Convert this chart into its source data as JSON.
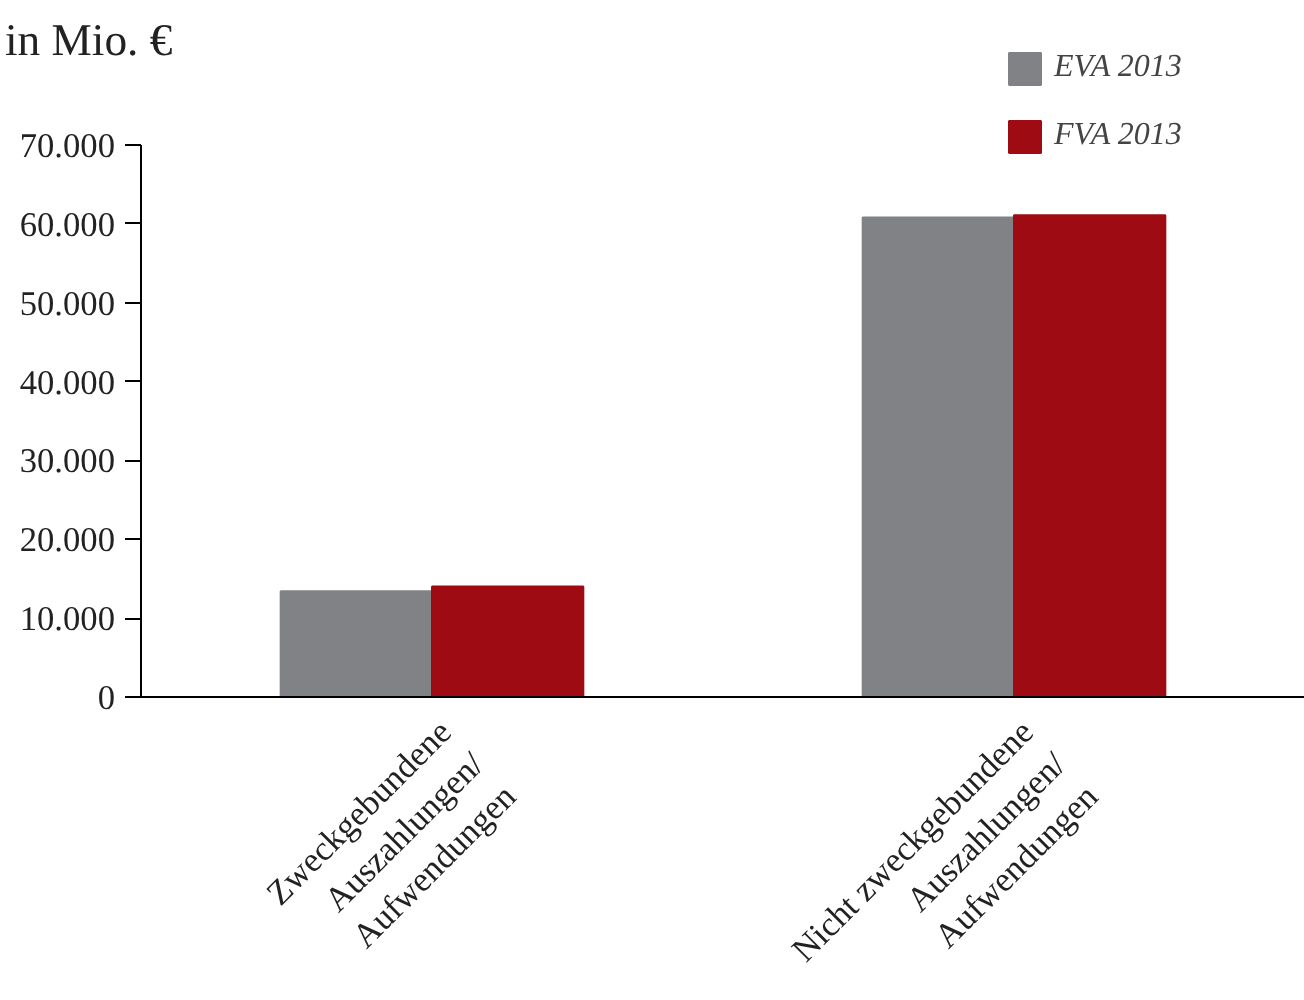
{
  "chart_data": {
    "type": "bar",
    "title": "in Mio. €",
    "categories": [
      "Zweckgebundene\nAuszahlungen/\nAufwendungen",
      "Nicht zweckgebundene\nAuszahlungen/\nAufwendungen"
    ],
    "series": [
      {
        "name": "EVA 2013",
        "color": "#808285",
        "values": [
          13400,
          60800
        ]
      },
      {
        "name": "FVA 2013",
        "color": "#9e0b12",
        "values": [
          14000,
          61100
        ]
      }
    ],
    "ylim": [
      0,
      70000
    ],
    "yticks": [
      {
        "value": 0,
        "label": "0"
      },
      {
        "value": 10000,
        "label": "10.000"
      },
      {
        "value": 20000,
        "label": "20.000"
      },
      {
        "value": 30000,
        "label": "30.000"
      },
      {
        "value": 40000,
        "label": "40.000"
      },
      {
        "value": 50000,
        "label": "50.000"
      },
      {
        "value": 60000,
        "label": "60.000"
      },
      {
        "value": 70000,
        "label": "70.000"
      }
    ],
    "grid": false,
    "legend": "top right"
  }
}
